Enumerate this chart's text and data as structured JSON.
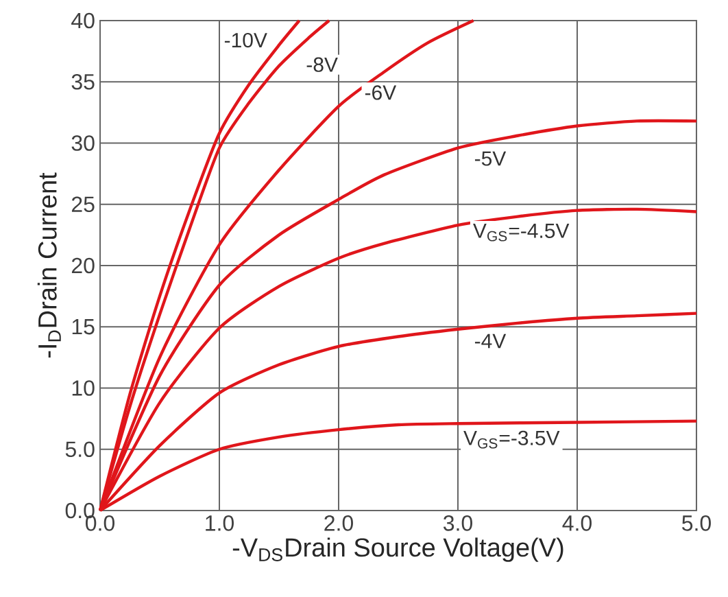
{
  "chart_data": {
    "type": "line",
    "xlabel": "-V$_{DS}$Drain Source Voltage(V)",
    "ylabel": "-I$_{D}$Drain Current",
    "xlim": [
      0,
      5
    ],
    "ylim": [
      0,
      40
    ],
    "xticks": [
      {
        "value": 0,
        "label": "0.0"
      },
      {
        "value": 1,
        "label": "1.0"
      },
      {
        "value": 2,
        "label": "2.0"
      },
      {
        "value": 3,
        "label": "3.0"
      },
      {
        "value": 4,
        "label": "4.0"
      },
      {
        "value": 5,
        "label": "5.0"
      }
    ],
    "yticks": [
      {
        "value": 0,
        "label": "0.0"
      },
      {
        "value": 5,
        "label": "5.0"
      },
      10,
      15,
      20,
      25,
      30,
      35,
      40
    ],
    "grid": true,
    "series": [
      {
        "color": "#e0161b",
        "x": [
          0,
          0.25,
          0.5,
          0.75,
          1,
          1.25,
          1.5,
          1.67
        ],
        "values": [
          0,
          9.5,
          17.5,
          24.5,
          30.8,
          34.8,
          38,
          40
        ]
      },
      {
        "color": "#e0161b",
        "x": [
          0,
          0.25,
          0.5,
          0.75,
          1,
          1.25,
          1.5,
          1.75,
          1.92
        ],
        "values": [
          0,
          8.5,
          16,
          23,
          29.6,
          33.3,
          36.3,
          38.6,
          40
        ]
      },
      {
        "color": "#e0161b",
        "x": [
          0,
          0.5,
          1,
          1.5,
          2,
          2.38,
          2.75,
          3.13
        ],
        "values": [
          0,
          12.5,
          21.7,
          27.8,
          33,
          35.8,
          38.2,
          40
        ]
      },
      {
        "color": "#e0161b",
        "x": [
          0,
          0.5,
          1,
          1.5,
          2,
          2.38,
          3,
          3.5,
          4,
          4.5,
          5
        ],
        "values": [
          0,
          11,
          18.4,
          22.5,
          25.4,
          27.4,
          29.6,
          30.6,
          31.4,
          31.8,
          31.8
        ]
      },
      {
        "color": "#e0161b",
        "x": [
          0,
          0.5,
          1,
          1.5,
          2,
          2.38,
          3,
          3.5,
          4,
          4.5,
          5
        ],
        "values": [
          0,
          8.8,
          14.9,
          18.3,
          20.6,
          21.8,
          23.3,
          24,
          24.5,
          24.6,
          24.4
        ]
      },
      {
        "color": "#e0161b",
        "x": [
          0,
          0.5,
          1,
          1.5,
          2,
          2.5,
          3,
          3.5,
          4,
          4.5,
          5
        ],
        "values": [
          0,
          5.3,
          9.6,
          11.9,
          13.4,
          14.2,
          14.8,
          15.3,
          15.7,
          15.9,
          16.1
        ]
      },
      {
        "color": "#e0161b",
        "x": [
          0,
          0.5,
          1,
          1.5,
          2,
          2.5,
          3,
          4,
          5
        ],
        "values": [
          0,
          2.8,
          5,
          6,
          6.6,
          7,
          7.1,
          7.2,
          7.3
        ]
      }
    ],
    "annotations": [
      {
        "text": "-10V",
        "x": 1.22,
        "y": 38.4
      },
      {
        "text": "-8V",
        "x": 1.86,
        "y": 36.4
      },
      {
        "text": "-6V",
        "x": 2.35,
        "y": 35.3
      },
      {
        "text": "-5V",
        "x": 3.27,
        "y": 29.9
      },
      {
        "text": "V$_{GS}$=-4.5V",
        "x": 3.53,
        "y": 24
      },
      {
        "text": "-4V",
        "x": 3.27,
        "y": 15
      },
      {
        "text": "V$_{GS}$=-3.5V",
        "x": 3.45,
        "y": 7.1
      }
    ]
  }
}
